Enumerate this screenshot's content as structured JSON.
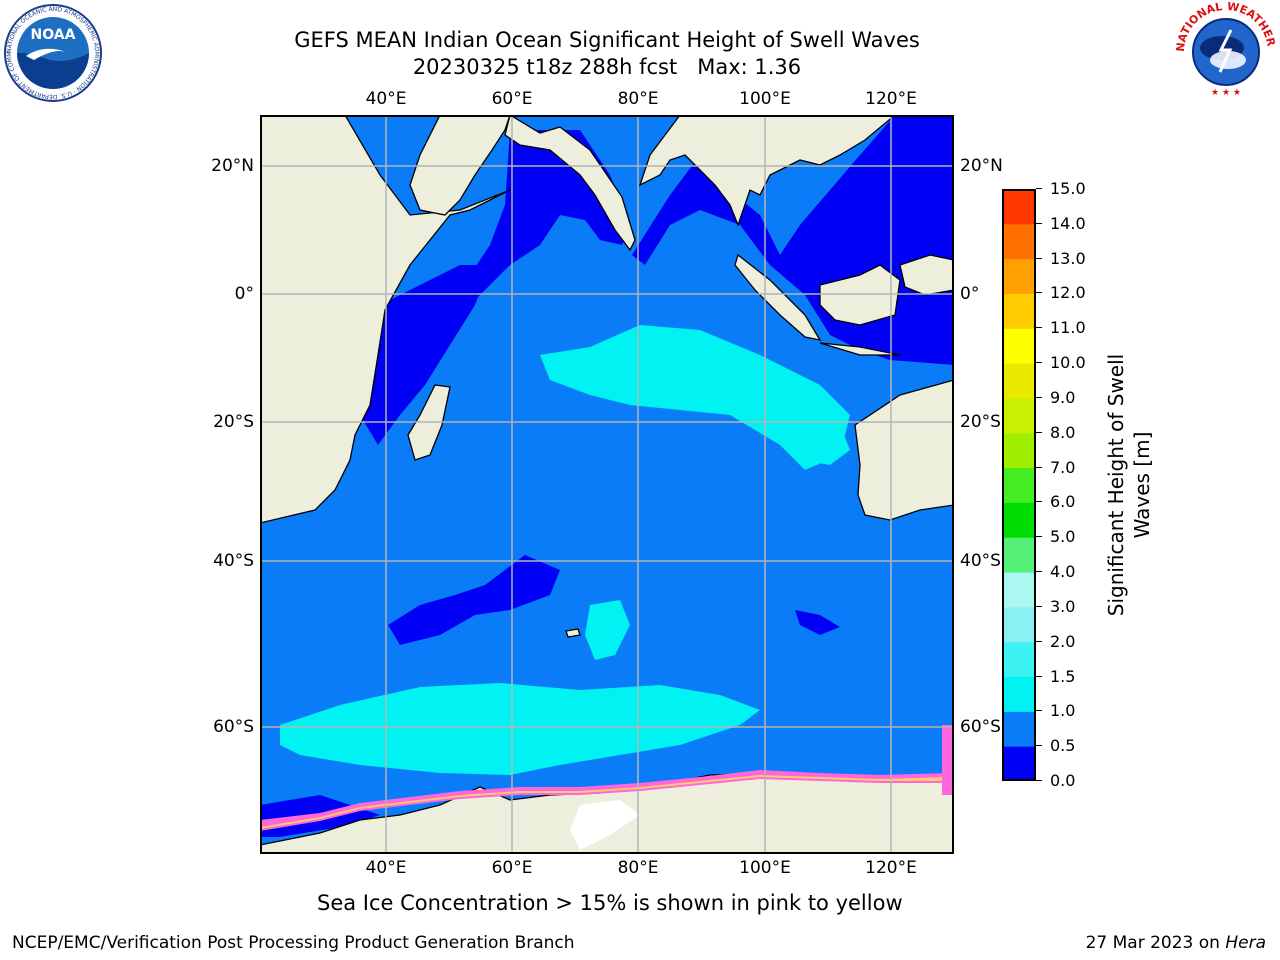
{
  "title": {
    "line1": "GEFS MEAN Indian Ocean Significant Height of Swell Waves",
    "line2": "20230325 t18z 288h fcst   Max: 1.36"
  },
  "map": {
    "lon_range": [
      20,
      130
    ],
    "lat_range": [
      -75,
      27
    ],
    "lon_ticks": [
      {
        "value": 40,
        "label": "40°E"
      },
      {
        "value": 60,
        "label": "60°E"
      },
      {
        "value": 80,
        "label": "80°E"
      },
      {
        "value": 100,
        "label": "100°E"
      },
      {
        "value": 120,
        "label": "120°E"
      }
    ],
    "lat_ticks": [
      {
        "value": 20,
        "label": "20°N"
      },
      {
        "value": 0,
        "label": "0°"
      },
      {
        "value": -20,
        "label": "20°S"
      },
      {
        "value": -40,
        "label": "40°S"
      },
      {
        "value": -60,
        "label": "60°S"
      }
    ],
    "grid": true,
    "land_color": "#eeeedd",
    "ocean_fill_color": "#0a7cf7"
  },
  "colorbar": {
    "label": "Significant Height of Swell Waves [m]",
    "label_line1": "Significant Height of Swell",
    "label_line2": "Waves [m]",
    "levels": [
      "0.0",
      "0.5",
      "1.0",
      "1.5",
      "2.0",
      "3.0",
      "4.0",
      "5.0",
      "6.0",
      "7.0",
      "8.0",
      "9.0",
      "10.0",
      "11.0",
      "12.0",
      "13.0",
      "14.0",
      "15.0"
    ],
    "colors": [
      "#0000f5",
      "#0a7cf7",
      "#00f2f2",
      "#3cf2f2",
      "#88f2f2",
      "#aaf8f0",
      "#55f078",
      "#00dd00",
      "#44ee22",
      "#a0ee00",
      "#c8f000",
      "#eaea00",
      "#ffff00",
      "#ffcc00",
      "#ffa000",
      "#ff7000",
      "#ff3800",
      "#ff0000"
    ]
  },
  "caption": "Sea Ice Concentration > 15% is shown in pink to yellow",
  "footer": {
    "left": "NCEP/EMC/Verification Post Processing Product Generation Branch",
    "date": "27 Mar 2023 on ",
    "host": "Hera"
  },
  "logos": {
    "left": {
      "name": "NOAA",
      "ring_text": "NATIONAL OCEANIC AND ATMOSPHERIC ADMINISTRATION · U.S. DEPARTMENT OF COMMERCE"
    },
    "right": {
      "name": "NATIONAL WEATHER SERVICE"
    }
  }
}
